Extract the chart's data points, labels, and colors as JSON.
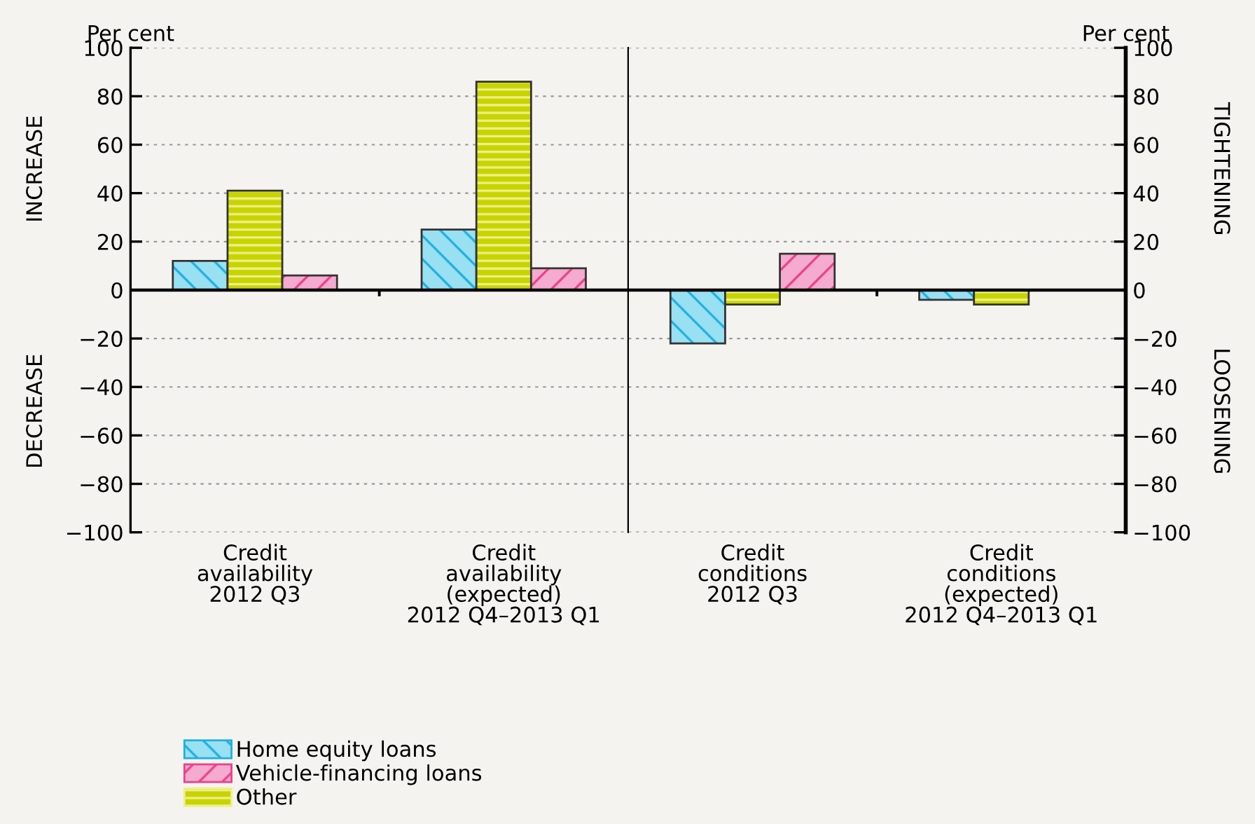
{
  "chart_data": [
    {
      "type": "bar",
      "ylabel": "Per cent",
      "categories": [
        "Credit\navailability\n2012 Q3",
        "Credit\navailability\n(expected)\n2012 Q4–2013 Q1"
      ],
      "series": [
        {
          "name": "Home equity loans",
          "color": "#99e0f2",
          "values": [
            12,
            25
          ]
        },
        {
          "name": "Other",
          "color": "#c8d400",
          "values": [
            41,
            86
          ]
        },
        {
          "name": "Vehicle-financing loans",
          "color": "#f5aacf",
          "values": [
            6,
            9
          ]
        }
      ],
      "ylim": [
        -100,
        100
      ],
      "yticks": [
        {
          "value": -100,
          "label": "−100"
        },
        {
          "value": -80,
          "label": "−80"
        },
        {
          "value": -60,
          "label": "−60"
        },
        {
          "value": -40,
          "label": "−40"
        },
        {
          "value": -20,
          "label": "−20"
        },
        0,
        20,
        40,
        60,
        80,
        100
      ],
      "annotations": [
        "INCREASE",
        "DECREASE"
      ],
      "grid": "y",
      "legend": "bottom left"
    },
    {
      "type": "bar",
      "y2label": "Per cent",
      "categories": [
        "Credit\nconditions\n2012 Q3",
        "Credit\nconditions\n(expected)\n2012 Q4–2013 Q1"
      ],
      "series": [
        {
          "color": "#99e0f2",
          "values": [
            -22,
            -4
          ],
          "axis": "y2"
        },
        {
          "color": "#c8d400",
          "values": [
            -6,
            -6
          ],
          "axis": "y2"
        },
        {
          "color": "#f5aacf",
          "values": [
            15,
            null
          ],
          "axis": "y2"
        }
      ],
      "y2lim": [
        -100,
        100
      ],
      "y2ticks": [
        {
          "value": -100,
          "label": "−100"
        },
        {
          "value": -80,
          "label": "−80"
        },
        {
          "value": -60,
          "label": "−60"
        },
        {
          "value": -40,
          "label": "−40"
        },
        {
          "value": -20,
          "label": "−20"
        },
        0,
        20,
        40,
        60,
        80,
        100
      ],
      "annotations": [
        "TIGHTENING",
        "LOOSENING"
      ],
      "grid": "y"
    }
  ]
}
